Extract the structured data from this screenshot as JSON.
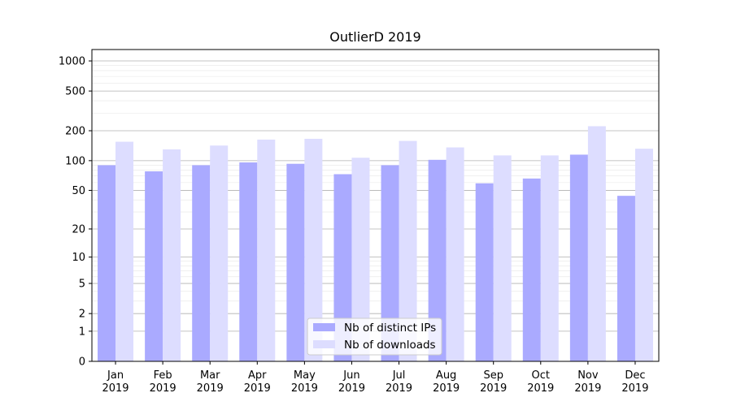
{
  "chart_data": {
    "type": "bar",
    "title": "OutlierD 2019",
    "categories": [
      "Jan\n2019",
      "Feb\n2019",
      "Mar\n2019",
      "Apr\n2019",
      "May\n2019",
      "Jun\n2019",
      "Jul\n2019",
      "Aug\n2019",
      "Sep\n2019",
      "Oct\n2019",
      "Nov\n2019",
      "Dec\n2019"
    ],
    "series": [
      {
        "name": "Nb of distinct IPs",
        "color": "#aaaaff",
        "values": [
          90,
          78,
          90,
          96,
          93,
          73,
          90,
          102,
          59,
          66,
          115,
          44
        ]
      },
      {
        "name": "Nb of downloads",
        "color": "#ddddff",
        "values": [
          155,
          130,
          142,
          163,
          166,
          107,
          158,
          136,
          113,
          113,
          222,
          132
        ]
      }
    ],
    "yscale": "symlog",
    "yticks": [
      0,
      1,
      2,
      5,
      10,
      20,
      50,
      100,
      200,
      500,
      1000
    ],
    "ytick_labels": [
      "0",
      "1",
      "2",
      "5",
      "10",
      "20",
      "50",
      "100",
      "200",
      "500",
      "1000"
    ],
    "ylim": [
      0,
      1300
    ],
    "grid": true,
    "legend_position": "bottom-center"
  }
}
